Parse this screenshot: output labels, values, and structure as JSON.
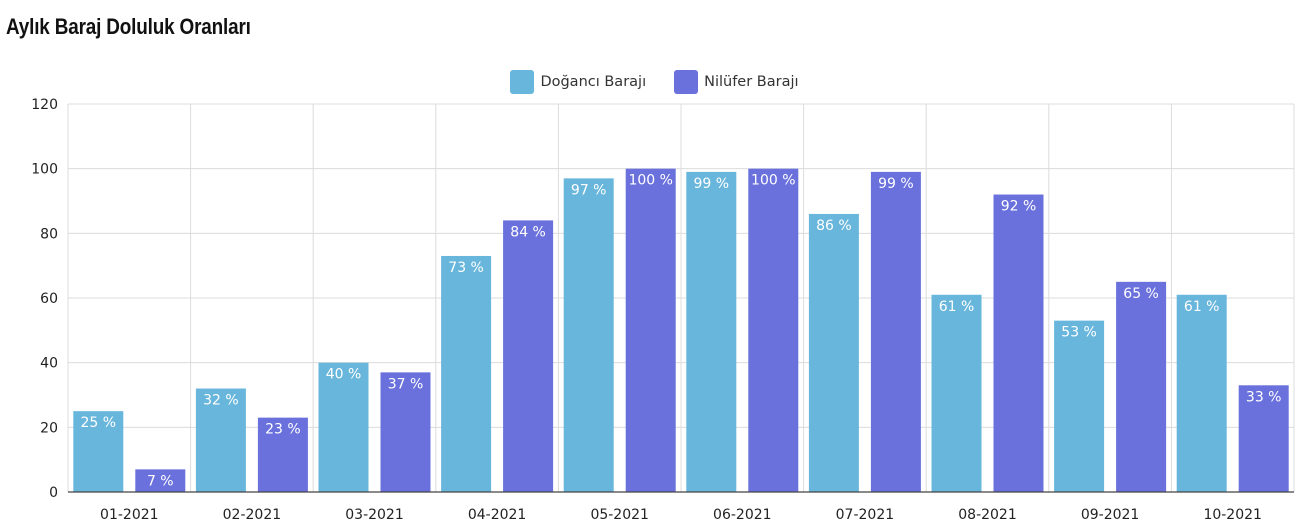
{
  "page": {
    "title": "Aylık Baraj Doluluk Oranları"
  },
  "legend": {
    "items": [
      {
        "label": "Doğancı Barajı",
        "color": "#68b6dc"
      },
      {
        "label": "Nilüfer Barajı",
        "color": "#6a70dc"
      }
    ]
  },
  "chart_data": {
    "type": "bar",
    "title": "",
    "xlabel": "",
    "ylabel": "",
    "ylim": [
      0,
      120
    ],
    "yticks": [
      0,
      20,
      40,
      60,
      80,
      100,
      120
    ],
    "grid": true,
    "legend_position": "top",
    "value_suffix": " %",
    "categories": [
      "01-2021",
      "02-2021",
      "03-2021",
      "04-2021",
      "05-2021",
      "06-2021",
      "07-2021",
      "08-2021",
      "09-2021",
      "10-2021"
    ],
    "series": [
      {
        "name": "Doğancı Barajı",
        "color": "#68b6dc",
        "values": [
          25,
          32,
          40,
          73,
          97,
          99,
          86,
          61,
          53,
          61
        ]
      },
      {
        "name": "Nilüfer Barajı",
        "color": "#6a70dc",
        "values": [
          7,
          23,
          37,
          84,
          100,
          100,
          99,
          92,
          65,
          33
        ]
      }
    ]
  }
}
